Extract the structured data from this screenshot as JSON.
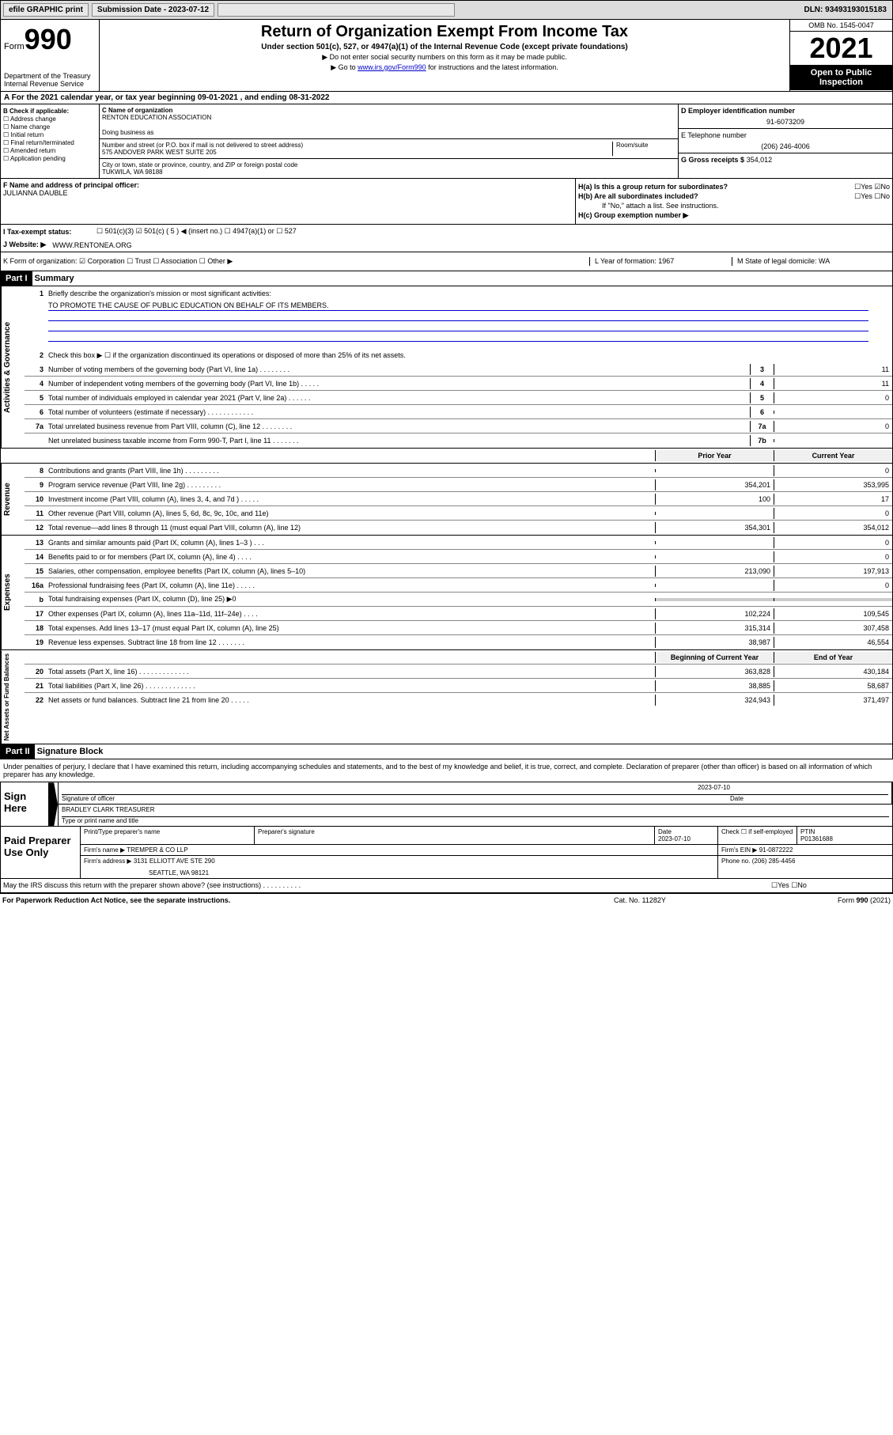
{
  "toolbar": {
    "efile": "efile GRAPHIC print",
    "submission_label": "Submission Date - 2023-07-12",
    "dln": "DLN: 93493193015183"
  },
  "header": {
    "form_prefix": "Form",
    "form_num": "990",
    "dept": "Department of the Treasury",
    "irs": "Internal Revenue Service",
    "title": "Return of Organization Exempt From Income Tax",
    "subtitle": "Under section 501(c), 527, or 4947(a)(1) of the Internal Revenue Code (except private foundations)",
    "note1": "▶ Do not enter social security numbers on this form as it may be made public.",
    "note2_pre": "▶ Go to ",
    "note2_link": "www.irs.gov/Form990",
    "note2_post": " for instructions and the latest information.",
    "omb": "OMB No. 1545-0047",
    "year": "2021",
    "inspection": "Open to Public Inspection"
  },
  "section_a": "A For the 2021 calendar year, or tax year beginning 09-01-2021   , and ending 08-31-2022",
  "b": {
    "label": "B Check if applicable:",
    "opts": [
      "☐ Address change",
      "☐ Name change",
      "☐ Initial return",
      "☐ Final return/terminated",
      "☐ Amended return",
      "☐ Application pending"
    ]
  },
  "c": {
    "name_label": "C Name of organization",
    "name": "RENTON EDUCATION ASSOCIATION",
    "dba_label": "Doing business as",
    "addr_label": "Number and street (or P.O. box if mail is not delivered to street address)",
    "room_label": "Room/suite",
    "addr": "575 ANDOVER PARK WEST SUITE 205",
    "city_label": "City or town, state or province, country, and ZIP or foreign postal code",
    "city": "TUKWILA, WA  98188"
  },
  "d": {
    "label": "D Employer identification number",
    "val": "91-6073209"
  },
  "e": {
    "label": "E Telephone number",
    "val": "(206) 246-4006"
  },
  "g": {
    "label": "G Gross receipts $",
    "val": "354,012"
  },
  "f": {
    "label": "F  Name and address of principal officer:",
    "val": "JULIANNA DAUBLE"
  },
  "h": {
    "a": "H(a)  Is this a group return for subordinates?",
    "a_ans": "☐Yes ☑No",
    "b": "H(b)  Are all subordinates included?",
    "b_ans": "☐Yes ☐No",
    "b_note": "If \"No,\" attach a list. See instructions.",
    "c": "H(c)  Group exemption number ▶"
  },
  "i": {
    "label": "I   Tax-exempt status:",
    "opts": "☐ 501(c)(3)   ☑ 501(c) ( 5 ) ◀ (insert no.)    ☐ 4947(a)(1) or   ☐ 527"
  },
  "j": {
    "label": "J   Website: ▶",
    "val": " WWW.RENTONEA.ORG"
  },
  "k": {
    "label": "K Form of organization:  ☑ Corporation  ☐ Trust  ☐ Association  ☐ Other ▶",
    "l": "L Year of formation: 1967",
    "m": "M State of legal domicile: WA"
  },
  "part1": {
    "label": "Part I",
    "title": "Summary"
  },
  "gov": {
    "tab": "Activities & Governance",
    "l1": "Briefly describe the organization's mission or most significant activities:",
    "mission": "TO PROMOTE THE CAUSE OF PUBLIC EDUCATION ON BEHALF OF ITS MEMBERS.",
    "l2": "Check this box ▶ ☐  if the organization discontinued its operations or disposed of more than 25% of its net assets.",
    "rows": [
      {
        "n": "3",
        "t": "Number of voting members of the governing body (Part VI, line 1a)   .    .    .    .    .    .    .    .",
        "b": "3",
        "v": "11"
      },
      {
        "n": "4",
        "t": "Number of independent voting members of the governing body (Part VI, line 1b)  .    .    .    .    .",
        "b": "4",
        "v": "11"
      },
      {
        "n": "5",
        "t": "Total number of individuals employed in calendar year 2021 (Part V, line 2a)  .    .    .    .    .    .",
        "b": "5",
        "v": "0"
      },
      {
        "n": "6",
        "t": "Total number of volunteers (estimate if necessary)   .    .    .    .    .    .    .    .    .    .    .    .",
        "b": "6",
        "v": ""
      },
      {
        "n": "7a",
        "t": "Total unrelated business revenue from Part VIII, column (C), line 12  .    .    .    .    .    .    .    .",
        "b": "7a",
        "v": "0"
      },
      {
        "n": "",
        "t": "Net unrelated business taxable income from Form 990-T, Part I, line 11  .    .    .    .    .    .    .",
        "b": "7b",
        "v": ""
      }
    ]
  },
  "two_col_header": {
    "prior": "Prior Year",
    "curr": "Current Year"
  },
  "rev": {
    "tab": "Revenue",
    "rows": [
      {
        "n": "8",
        "t": "Contributions and grants (Part VIII, line 1h)   .    .    .    .    .    .    .    .    .",
        "p": "",
        "c": "0"
      },
      {
        "n": "9",
        "t": "Program service revenue (Part VIII, line 2g)   .    .    .    .    .    .    .    .    .",
        "p": "354,201",
        "c": "353,995"
      },
      {
        "n": "10",
        "t": "Investment income (Part VIII, column (A), lines 3, 4, and 7d )  .    .    .    .    .",
        "p": "100",
        "c": "17"
      },
      {
        "n": "11",
        "t": "Other revenue (Part VIII, column (A), lines 5, 6d, 8c, 9c, 10c, and 11e)",
        "p": "",
        "c": "0"
      },
      {
        "n": "12",
        "t": "Total revenue—add lines 8 through 11 (must equal Part VIII, column (A), line 12)",
        "p": "354,301",
        "c": "354,012"
      }
    ]
  },
  "exp": {
    "tab": "Expenses",
    "rows": [
      {
        "n": "13",
        "t": "Grants and similar amounts paid (Part IX, column (A), lines 1–3 )  .    .    .",
        "p": "",
        "c": "0"
      },
      {
        "n": "14",
        "t": "Benefits paid to or for members (Part IX, column (A), line 4)  .    .    .    .",
        "p": "",
        "c": "0"
      },
      {
        "n": "15",
        "t": "Salaries, other compensation, employee benefits (Part IX, column (A), lines 5–10)",
        "p": "213,090",
        "c": "197,913"
      },
      {
        "n": "16a",
        "t": "Professional fundraising fees (Part IX, column (A), line 11e)  .    .    .    .    .",
        "p": "",
        "c": "0"
      },
      {
        "n": "b",
        "t": "Total fundraising expenses (Part IX, column (D), line 25) ▶0",
        "p": null,
        "c": null
      },
      {
        "n": "17",
        "t": "Other expenses (Part IX, column (A), lines 11a–11d, 11f–24e)  .    .    .    .",
        "p": "102,224",
        "c": "109,545"
      },
      {
        "n": "18",
        "t": "Total expenses. Add lines 13–17 (must equal Part IX, column (A), line 25)",
        "p": "315,314",
        "c": "307,458"
      },
      {
        "n": "19",
        "t": "Revenue less expenses. Subtract line 18 from line 12  .    .    .    .    .    .    .",
        "p": "38,987",
        "c": "46,554"
      }
    ]
  },
  "na": {
    "tab": "Net Assets or Fund Balances",
    "header": {
      "p": "Beginning of Current Year",
      "c": "End of Year"
    },
    "rows": [
      {
        "n": "20",
        "t": "Total assets (Part X, line 16)  .    .    .    .    .    .    .    .    .    .    .    .    .",
        "p": "363,828",
        "c": "430,184"
      },
      {
        "n": "21",
        "t": "Total liabilities (Part X, line 26)  .    .    .    .    .    .    .    .    .    .    .    .    .",
        "p": "38,885",
        "c": "58,687"
      },
      {
        "n": "22",
        "t": "Net assets or fund balances. Subtract line 21 from line 20  .    .    .    .    .",
        "p": "324,943",
        "c": "371,497"
      }
    ]
  },
  "part2": {
    "label": "Part II",
    "title": "Signature Block"
  },
  "sig": {
    "penalty": "Under penalties of perjury, I declare that I have examined this return, including accompanying schedules and statements, and to the best of my knowledge and belief, it is true, correct, and complete. Declaration of preparer (other than officer) is based on all information of which preparer has any knowledge.",
    "sign_here": "Sign Here",
    "date": "2023-07-10",
    "sig_officer": "Signature of officer",
    "date_label": "Date",
    "name": "BRADLEY CLARK  TREASURER",
    "name_label": "Type or print name and title",
    "paid": "Paid Preparer Use Only",
    "prep_name_label": "Print/Type preparer's name",
    "prep_sig_label": "Preparer's signature",
    "prep_date_label": "Date",
    "prep_date": "2023-07-10",
    "check_label": "Check ☐ if self-employed",
    "ptin_label": "PTIN",
    "ptin": "P01361688",
    "firm_name_label": "Firm's name     ▶",
    "firm_name": "TREMPER & CO LLP",
    "firm_ein_label": "Firm's EIN ▶",
    "firm_ein": "91-0872222",
    "firm_addr_label": "Firm's address ▶",
    "firm_addr1": "3131 ELLIOTT AVE STE 290",
    "firm_addr2": "SEATTLE, WA  98121",
    "phone_label": "Phone no.",
    "phone": "(206) 285-4456",
    "discuss": "May the IRS discuss this return with the preparer shown above? (see instructions)   .    .    .    .    .    .    .    .    .    .",
    "discuss_ans": "☐Yes  ☐No"
  },
  "footer": {
    "left": "For Paperwork Reduction Act Notice, see the separate instructions.",
    "mid": "Cat. No. 11282Y",
    "right": "Form 990 (2021)"
  }
}
